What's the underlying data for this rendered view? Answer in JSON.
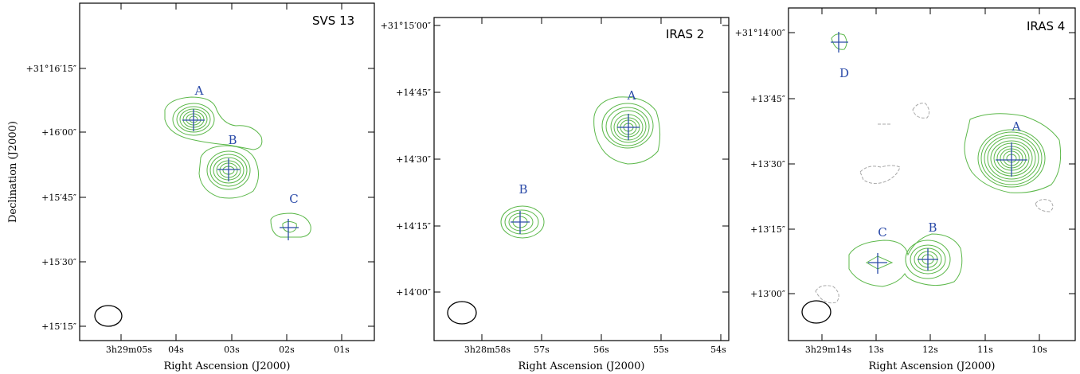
{
  "chart_data": [
    {
      "type": "contour",
      "title": "SVS 13",
      "xlabel": "Right Ascension (J2000)",
      "ylabel": "Declination (J2000)",
      "x_tick_labels": [
        "3h29m05s",
        "04s",
        "03s",
        "02s",
        "01s"
      ],
      "y_tick_labels": [
        "+31°16′15″",
        "+16′00″",
        "+15′45″",
        "+15′30″",
        "+15′15″"
      ],
      "sources": [
        {
          "label": "A",
          "ra_s": 3.7,
          "dec_s": 62,
          "peak": 9
        },
        {
          "label": "B",
          "ra_s": 3.1,
          "dec_s": 51,
          "peak": 9
        },
        {
          "label": "C",
          "ra_s": 2.0,
          "dec_s": 39,
          "peak": 2
        }
      ]
    },
    {
      "type": "contour",
      "title": "IRAS 2",
      "xlabel": "Right Ascension (J2000)",
      "ylabel": "",
      "x_tick_labels": [
        "3h28m58s",
        "57s",
        "56s",
        "55s",
        "54s"
      ],
      "y_tick_labels": [
        "+31°15′00″",
        "+14′45″",
        "+14′30″",
        "+14′15″",
        "+14′00″"
      ],
      "sources": [
        {
          "label": "A",
          "ra_s": 55.5,
          "dec_s": 37,
          "peak": 9
        },
        {
          "label": "B",
          "ra_s": 57.3,
          "dec_s": 16,
          "peak": 4
        }
      ]
    },
    {
      "type": "contour",
      "title": "IRAS 4",
      "xlabel": "Right Ascension (J2000)",
      "ylabel": "",
      "x_tick_labels": [
        "3h29m14s",
        "13s",
        "12s",
        "11s",
        "10s"
      ],
      "y_tick_labels": [
        "+31°14′00″",
        "+13′45″",
        "+13′30″",
        "+13′15″",
        "+13′00″"
      ],
      "sources": [
        {
          "label": "A",
          "ra_s": 10.4,
          "dec_s": 31,
          "peak": 14
        },
        {
          "label": "B",
          "ra_s": 12.0,
          "dec_s": 8,
          "peak": 6
        },
        {
          "label": "C",
          "ra_s": 12.9,
          "dec_s": 7,
          "peak": 1
        },
        {
          "label": "D",
          "ra_s": 13.6,
          "dec_s": 58,
          "peak": 1
        }
      ]
    }
  ],
  "colors": {
    "contour": "#5cb84a",
    "negative_contour": "#a8a8a8",
    "marker": "#2a4aa8",
    "beam": "#000000",
    "axes": "#000000"
  }
}
